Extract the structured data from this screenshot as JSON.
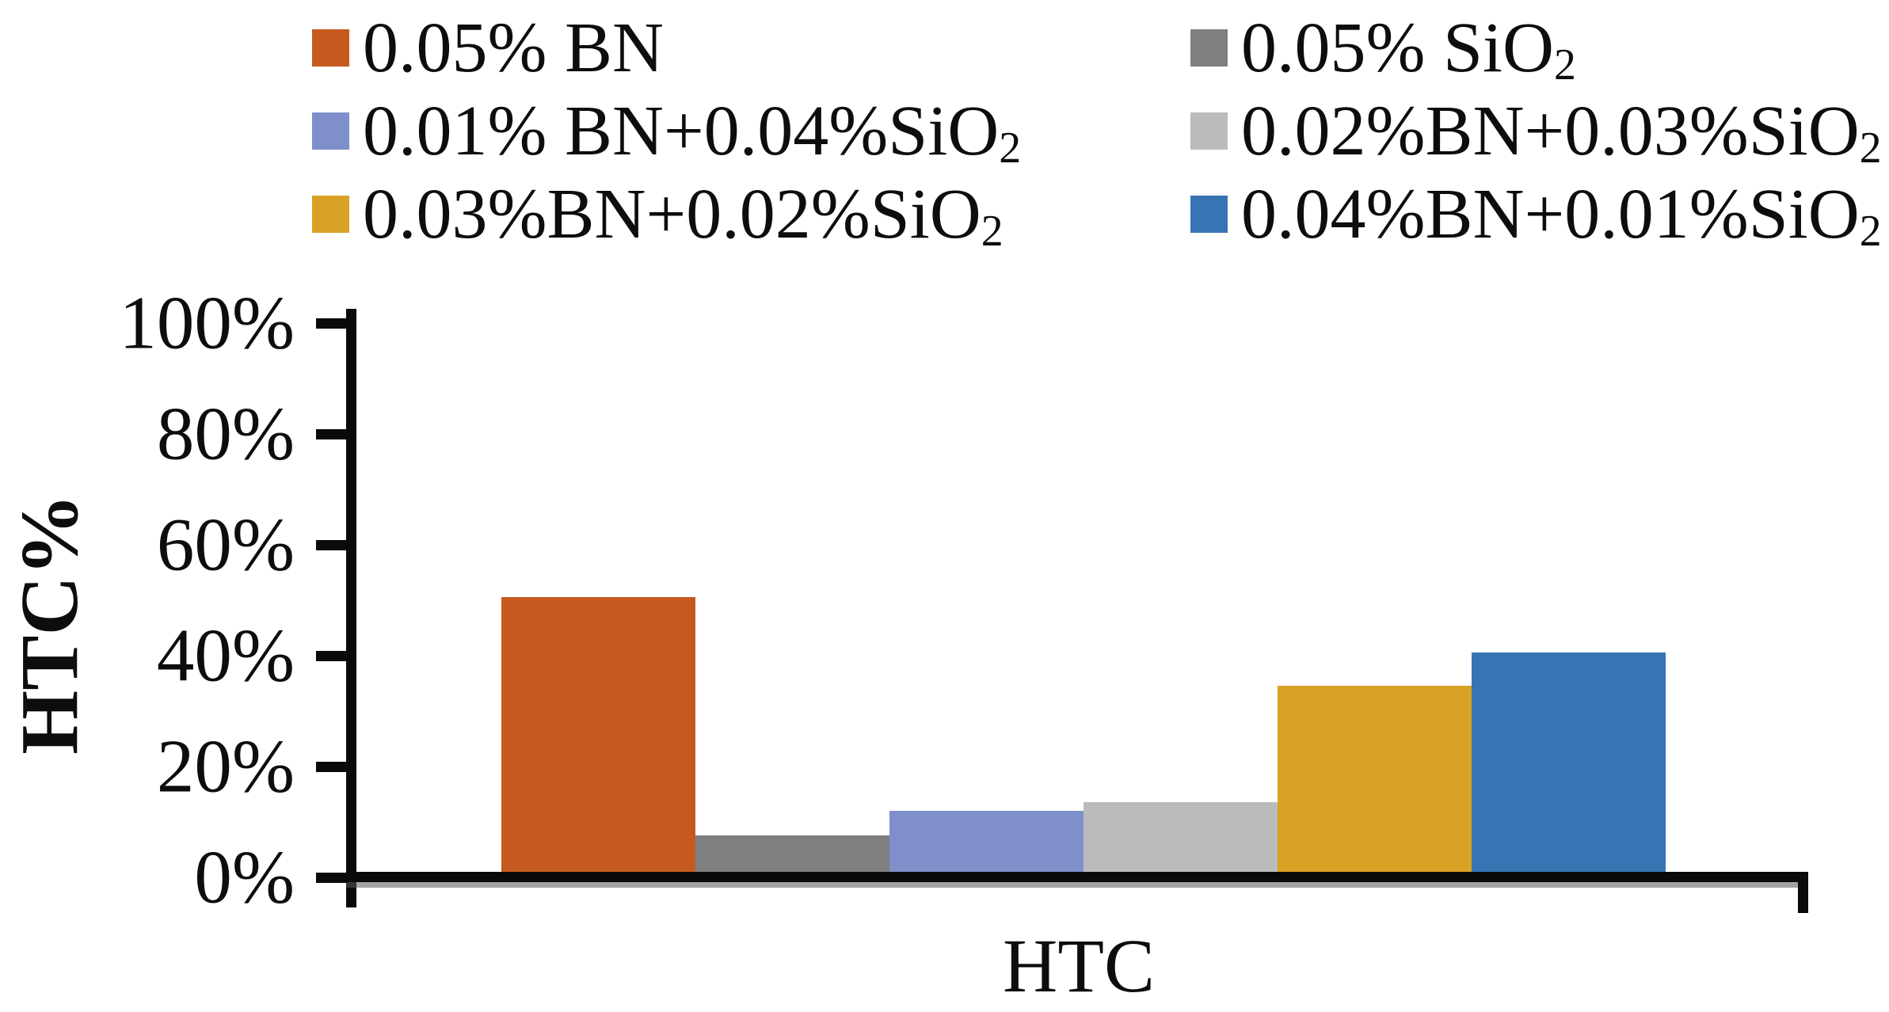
{
  "chart_data": {
    "type": "bar",
    "title": "",
    "categories": [
      "HTC"
    ],
    "xlabel": "HTC",
    "ylabel": "HTC%",
    "ylim": [
      0,
      100
    ],
    "ytick_labels": [
      "0%",
      "20%",
      "40%",
      "60%",
      "80%",
      "100%"
    ],
    "ytick_values": [
      0,
      20,
      40,
      60,
      80,
      100
    ],
    "grid": false,
    "legend_position": "top",
    "legend_columns": 2,
    "series": [
      {
        "name": "0.05% BN",
        "name_sub": "",
        "value": 50,
        "color": "#C65A1E"
      },
      {
        "name": "0.05% SiO",
        "name_sub": "2",
        "value": 7,
        "color": "#7F7F7F"
      },
      {
        "name": "0.01% BN+0.04%SiO",
        "name_sub": "2",
        "value": 11.5,
        "color": "#7E8FCA"
      },
      {
        "name": "0.02%BN+0.03%SiO",
        "name_sub": "2",
        "value": 13,
        "color": "#BBBBBB"
      },
      {
        "name": "0.03%BN+0.02%SiO",
        "name_sub": "2",
        "value": 34,
        "color": "#D9A125"
      },
      {
        "name": "0.04%BN+0.01%SiO",
        "name_sub": "2",
        "value": 40,
        "color": "#3873B3"
      }
    ]
  }
}
